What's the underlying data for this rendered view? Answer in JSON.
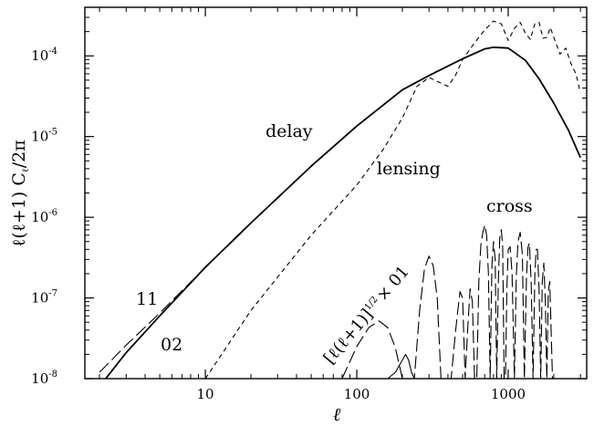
{
  "chart_data": {
    "type": "line",
    "title": "",
    "xlabel": "ℓ",
    "ylabel": {
      "prefix": "ℓ(ℓ+1) C",
      "subscript": "ℓ",
      "suffix": "/2π"
    },
    "xscale": "log",
    "yscale": "log",
    "xlim": [
      1.6,
      3300
    ],
    "ylim": [
      1e-08,
      0.0004
    ],
    "x_ticks": [
      {
        "value": 10,
        "label": "10"
      },
      {
        "value": 100,
        "label": "100"
      },
      {
        "value": 1000,
        "label": "1000"
      }
    ],
    "y_ticks": [
      {
        "value": 1e-08,
        "base": "10",
        "exp": "-8"
      },
      {
        "value": 1e-07,
        "base": "10",
        "exp": "-7"
      },
      {
        "value": 1e-06,
        "base": "10",
        "exp": "-6"
      },
      {
        "value": 1e-05,
        "base": "10",
        "exp": "-5"
      },
      {
        "value": 0.0001,
        "base": "10",
        "exp": "-4"
      }
    ],
    "annotations": {
      "delay": "delay",
      "lensing": "lensing",
      "cross": "cross",
      "label_11": "11",
      "label_02": "02",
      "cross_formula": {
        "open": "[ℓ(ℓ+1)]",
        "exp": "1/2",
        "tail": "× 01"
      }
    },
    "series": [
      {
        "style": "solid",
        "x": [
          2,
          3,
          5,
          10,
          20,
          50,
          100,
          200,
          300,
          500,
          700,
          800,
          1000,
          1300,
          1600,
          2000,
          2500,
          3000
        ],
        "y": [
          8e-09,
          2.1e-08,
          6e-08,
          2.4e-07,
          8.5e-07,
          4.3e-06,
          1.35e-05,
          3.8e-05,
          5.7e-05,
          9.2e-05,
          0.000122,
          0.000128,
          0.000125,
          8.8e-05,
          5.2e-05,
          2.6e-05,
          1.2e-05,
          5.5e-06
        ]
      },
      {
        "style": "long-dash",
        "x": [
          2,
          3,
          5,
          10,
          20,
          50,
          100,
          200,
          300,
          500,
          700,
          800,
          1000,
          1300,
          1600,
          2000,
          2500,
          3000
        ],
        "y": [
          1.2e-08,
          2.6e-08,
          6.5e-08,
          2.4e-07,
          8.5e-07,
          4.3e-06,
          1.35e-05,
          3.8e-05,
          5.7e-05,
          9.2e-05,
          0.000122,
          0.000128,
          0.000125,
          8.8e-05,
          5.2e-05,
          2.6e-05,
          1.2e-05,
          5.5e-06
        ]
      },
      {
        "style": "short-dash",
        "x": [
          10,
          20,
          50,
          100,
          150,
          200,
          250,
          300,
          350,
          400,
          450,
          500,
          600,
          700,
          800,
          900,
          1000,
          1100,
          1200,
          1300,
          1400,
          1500,
          1600,
          1700,
          1800,
          1900,
          2000,
          2200,
          2400,
          2600,
          2800,
          3000
        ],
        "y": [
          1e-08,
          7e-08,
          6e-07,
          2.5e-06,
          7e-06,
          1.7e-05,
          4.2e-05,
          5.4e-05,
          4.7e-05,
          4.2e-05,
          5.8e-05,
          9e-05,
          0.000145,
          0.00021,
          0.00027,
          0.00025,
          0.000155,
          0.00022,
          0.00026,
          0.00019,
          0.00016,
          0.00025,
          0.00026,
          0.000165,
          0.00017,
          0.000225,
          0.00017,
          0.000105,
          0.000125,
          8e-05,
          6e-05,
          3.5e-05
        ]
      },
      {
        "style": "long-dash",
        "x": [
          80,
          100,
          120,
          140,
          160,
          180,
          200,
          240,
          260,
          280,
          300,
          320,
          340,
          360,
          390,
          420,
          450,
          480,
          500,
          520,
          540,
          560,
          580,
          600,
          620,
          640,
          660,
          680,
          700,
          720,
          740,
          760,
          780,
          800,
          820,
          840,
          860,
          880,
          900,
          920,
          940,
          960,
          980,
          1000,
          1030,
          1060,
          1100,
          1130,
          1160,
          1200,
          1240,
          1280,
          1320,
          1350,
          1380,
          1420,
          1460,
          1500,
          1530,
          1560,
          1600,
          1640,
          1680,
          1720,
          1760,
          1800,
          1840,
          1880,
          1920,
          1960,
          2000
        ],
        "y": [
          1e-08,
          2.5e-08,
          4.3e-08,
          5.2e-08,
          4.3e-08,
          2.4e-08,
          1e-08,
          1e-08,
          7e-08,
          2.3e-07,
          3.3e-07,
          2.5e-07,
          1e-07,
          1e-08,
          1e-08,
          1e-08,
          4e-08,
          1.2e-07,
          1e-07,
          1e-08,
          4e-08,
          1.3e-07,
          9e-08,
          1e-08,
          1e-08,
          1.6e-07,
          4.5e-07,
          6.5e-07,
          8e-07,
          6e-07,
          2e-07,
          1e-08,
          2.5e-07,
          5e-07,
          3e-07,
          1e-08,
          1.5e-07,
          5.5e-07,
          7e-07,
          4.5e-07,
          1e-08,
          1e-08,
          1.3e-07,
          4e-07,
          4.3e-07,
          2e-07,
          1e-08,
          1.8e-07,
          5e-07,
          6.5e-07,
          3.5e-07,
          1e-08,
          1.8e-07,
          4.2e-07,
          4.8e-07,
          1.5e-07,
          1e-08,
          2e-07,
          4e-07,
          4e-07,
          1.3e-07,
          1e-08,
          1.6e-07,
          2.7e-07,
          9e-08,
          1e-08,
          1.2e-07,
          1.6e-07,
          4e-08,
          1e-08,
          1e-08
        ]
      },
      {
        "style": "solid",
        "x": [
          160,
          180,
          200,
          210,
          220,
          230,
          240
        ],
        "y": [
          1e-08,
          1.2e-08,
          1.7e-08,
          2e-08,
          1.7e-08,
          1.2e-08,
          1e-08
        ]
      }
    ]
  }
}
